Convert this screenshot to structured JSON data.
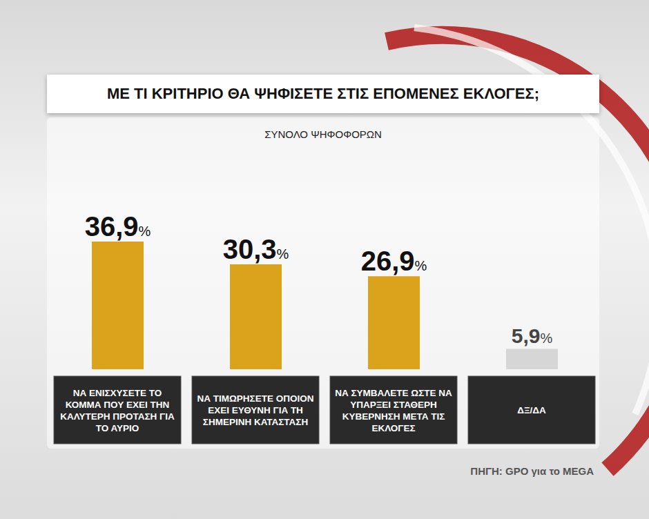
{
  "chart_data": {
    "type": "bar",
    "title": "ΜΕ ΤΙ ΚΡΙΤΗΡΙΟ ΘΑ ΨΗΦΙΣΕΤΕ ΣΤΙΣ ΕΠΟΜΕΝΕΣ ΕΚΛΟΓΕΣ;",
    "subtitle": "ΣΥΝΟΛΟ ΨΗΦΟΦΟΡΩΝ",
    "categories": [
      "ΝΑ ΕΝΙΣΧΥΣΕΤΕ ΤΟ ΚΟΜΜΑ ΠΟΥ ΕΧΕΙ ΤΗΝ ΚΑΛΥΤΕΡΗ ΠΡΟΤΑΣΗ ΓΙΑ ΤΟ ΑΥΡΙΟ",
      "ΝΑ ΤΙΜΩΡΗΣΕΤΕ ΟΠΟΙΟΝ ΕΧΕΙ ΕΥΘΥΝΗ ΓΙΑ ΤΗ ΣΗΜΕΡΙΝΗ ΚΑΤΑΣΤΑΣΗ",
      "ΝΑ ΣΥΜΒΑΛΕΤΕ ΩΣΤΕ ΝΑ ΥΠΑΡΞΕΙ ΣΤΑΘΕΡΗ ΚΥΒΕΡΝΗΣΗ ΜΕΤΑ ΤΙΣ ΕΚΛΟΓΕΣ",
      "ΔΞ/ΔΑ"
    ],
    "values": [
      36.9,
      30.3,
      26.9,
      5.9
    ],
    "value_labels": [
      "36,9%",
      "30,3%",
      "26,9%",
      "5,9%"
    ],
    "colors": [
      "#dba21c",
      "#dba21c",
      "#dba21c",
      "#d6d6d6"
    ],
    "data_labels": true,
    "tick_labels": "x",
    "annotations": [
      "ΠΗΓΗ: GPO για το MEGA"
    ]
  }
}
